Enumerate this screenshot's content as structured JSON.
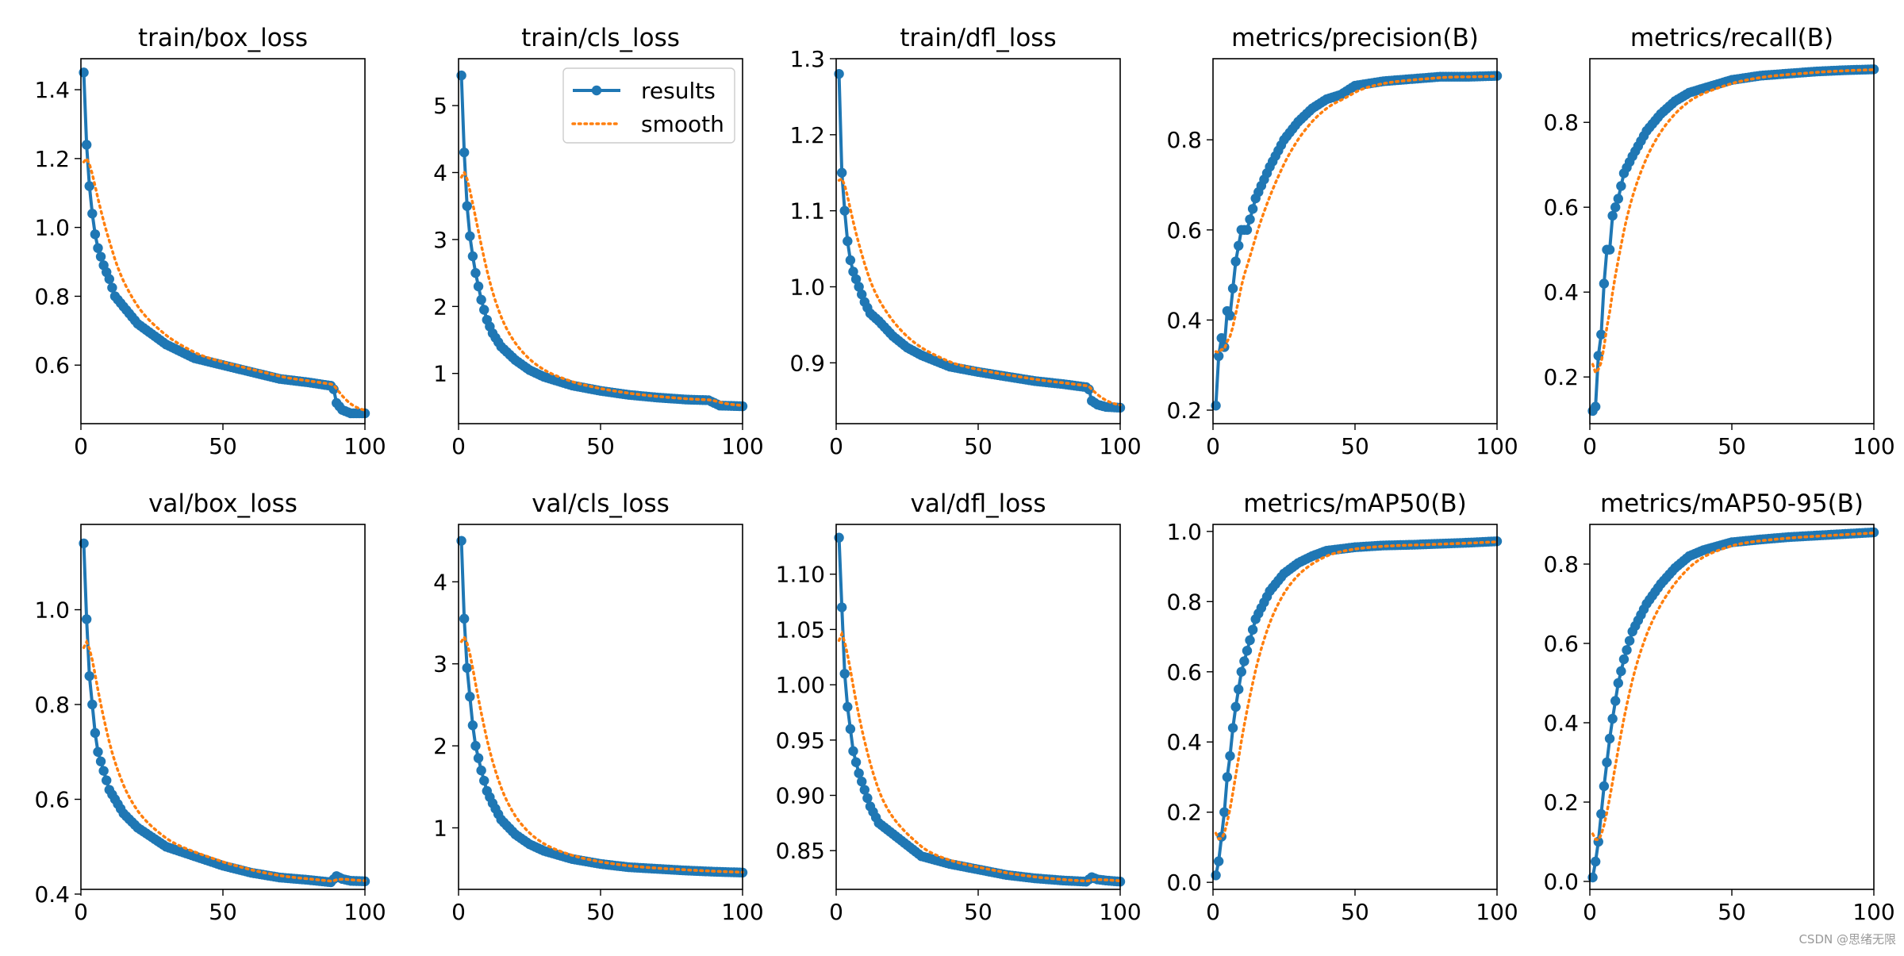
{
  "watermark": "CSDN @思绪无限",
  "legend": {
    "results_label": "results",
    "smooth_label": "smooth"
  },
  "colors": {
    "results": "#1f77b4",
    "smooth": "#ff7f0e",
    "axes": "#000000"
  },
  "chart_data": [
    {
      "type": "line",
      "title": "train/box_loss",
      "xlim": [
        0,
        100
      ],
      "ylim": [
        0.43,
        1.49
      ],
      "xticks": [
        0,
        50,
        100
      ],
      "yticks": [
        0.6,
        0.8,
        1.0,
        1.2,
        1.4
      ],
      "yprecision": 1,
      "legend": false,
      "anchors": [
        [
          1,
          1.45
        ],
        [
          2,
          1.24
        ],
        [
          3,
          1.12
        ],
        [
          4,
          1.04
        ],
        [
          5,
          0.98
        ],
        [
          6,
          0.94
        ],
        [
          8,
          0.89
        ],
        [
          10,
          0.85
        ],
        [
          12,
          0.8
        ],
        [
          15,
          0.77
        ],
        [
          20,
          0.72
        ],
        [
          25,
          0.69
        ],
        [
          30,
          0.66
        ],
        [
          40,
          0.62
        ],
        [
          50,
          0.6
        ],
        [
          60,
          0.58
        ],
        [
          70,
          0.56
        ],
        [
          80,
          0.55
        ],
        [
          88,
          0.54
        ],
        [
          89,
          0.53
        ],
        [
          90,
          0.49
        ],
        [
          92,
          0.47
        ],
        [
          95,
          0.46
        ],
        [
          100,
          0.46
        ]
      ],
      "smooth_start": 1.19
    },
    {
      "type": "line",
      "title": "train/cls_loss",
      "xlim": [
        0,
        100
      ],
      "ylim": [
        0.25,
        5.7
      ],
      "xticks": [
        0,
        50,
        100
      ],
      "yticks": [
        1,
        2,
        3,
        4,
        5
      ],
      "yprecision": 0,
      "legend": true,
      "anchors": [
        [
          1,
          5.45
        ],
        [
          2,
          4.3
        ],
        [
          3,
          3.5
        ],
        [
          4,
          3.05
        ],
        [
          5,
          2.75
        ],
        [
          6,
          2.5
        ],
        [
          8,
          2.1
        ],
        [
          10,
          1.8
        ],
        [
          12,
          1.6
        ],
        [
          15,
          1.4
        ],
        [
          20,
          1.2
        ],
        [
          25,
          1.05
        ],
        [
          30,
          0.95
        ],
        [
          40,
          0.82
        ],
        [
          50,
          0.74
        ],
        [
          60,
          0.68
        ],
        [
          70,
          0.64
        ],
        [
          80,
          0.61
        ],
        [
          88,
          0.6
        ],
        [
          90,
          0.56
        ],
        [
          92,
          0.52
        ],
        [
          100,
          0.51
        ]
      ],
      "smooth_start": 3.93
    },
    {
      "type": "line",
      "title": "train/dfl_loss",
      "xlim": [
        0,
        100
      ],
      "ylim": [
        0.82,
        1.3
      ],
      "xticks": [
        0,
        50,
        100
      ],
      "yticks": [
        0.9,
        1.0,
        1.1,
        1.2,
        1.3
      ],
      "yprecision": 1,
      "legend": false,
      "anchors": [
        [
          1,
          1.28
        ],
        [
          2,
          1.15
        ],
        [
          3,
          1.1
        ],
        [
          4,
          1.06
        ],
        [
          5,
          1.035
        ],
        [
          6,
          1.02
        ],
        [
          8,
          1.0
        ],
        [
          10,
          0.98
        ],
        [
          12,
          0.965
        ],
        [
          15,
          0.955
        ],
        [
          20,
          0.935
        ],
        [
          25,
          0.92
        ],
        [
          30,
          0.91
        ],
        [
          40,
          0.895
        ],
        [
          50,
          0.888
        ],
        [
          60,
          0.882
        ],
        [
          70,
          0.876
        ],
        [
          80,
          0.872
        ],
        [
          88,
          0.868
        ],
        [
          89,
          0.865
        ],
        [
          90,
          0.85
        ],
        [
          92,
          0.845
        ],
        [
          95,
          0.842
        ],
        [
          100,
          0.841
        ]
      ],
      "smooth_start": 1.14
    },
    {
      "type": "line",
      "title": "metrics/precision(B)",
      "xlim": [
        0,
        100
      ],
      "ylim": [
        0.17,
        0.98
      ],
      "xticks": [
        0,
        50,
        100
      ],
      "yticks": [
        0.2,
        0.4,
        0.6,
        0.8
      ],
      "yprecision": 1,
      "legend": false,
      "anchors": [
        [
          1,
          0.21
        ],
        [
          2,
          0.32
        ],
        [
          3,
          0.36
        ],
        [
          4,
          0.34
        ],
        [
          5,
          0.42
        ],
        [
          6,
          0.41
        ],
        [
          8,
          0.53
        ],
        [
          10,
          0.6
        ],
        [
          12,
          0.6
        ],
        [
          15,
          0.67
        ],
        [
          20,
          0.74
        ],
        [
          25,
          0.8
        ],
        [
          30,
          0.84
        ],
        [
          35,
          0.87
        ],
        [
          40,
          0.89
        ],
        [
          45,
          0.9
        ],
        [
          50,
          0.92
        ],
        [
          60,
          0.93
        ],
        [
          70,
          0.935
        ],
        [
          80,
          0.94
        ],
        [
          90,
          0.94
        ],
        [
          100,
          0.942
        ]
      ],
      "smooth_start": 0.33
    },
    {
      "type": "line",
      "title": "metrics/recall(B)",
      "xlim": [
        0,
        100
      ],
      "ylim": [
        0.09,
        0.95
      ],
      "xticks": [
        0,
        50,
        100
      ],
      "yticks": [
        0.2,
        0.4,
        0.6,
        0.8
      ],
      "yprecision": 1,
      "legend": false,
      "anchors": [
        [
          1,
          0.12
        ],
        [
          2,
          0.13
        ],
        [
          3,
          0.25
        ],
        [
          4,
          0.3
        ],
        [
          5,
          0.42
        ],
        [
          6,
          0.5
        ],
        [
          7,
          0.5
        ],
        [
          8,
          0.58
        ],
        [
          10,
          0.62
        ],
        [
          12,
          0.68
        ],
        [
          15,
          0.72
        ],
        [
          20,
          0.78
        ],
        [
          25,
          0.82
        ],
        [
          30,
          0.85
        ],
        [
          35,
          0.87
        ],
        [
          40,
          0.88
        ],
        [
          45,
          0.89
        ],
        [
          50,
          0.9
        ],
        [
          60,
          0.91
        ],
        [
          70,
          0.915
        ],
        [
          80,
          0.92
        ],
        [
          90,
          0.923
        ],
        [
          100,
          0.925
        ]
      ],
      "smooth_start": 0.23
    },
    {
      "type": "line",
      "title": "val/box_loss",
      "xlim": [
        0,
        100
      ],
      "ylim": [
        0.41,
        1.18
      ],
      "xticks": [
        0,
        50,
        100
      ],
      "yticks": [
        0.4,
        0.6,
        0.8,
        1.0
      ],
      "yprecision": 1,
      "legend": false,
      "anchors": [
        [
          1,
          1.14
        ],
        [
          2,
          0.98
        ],
        [
          3,
          0.86
        ],
        [
          4,
          0.8
        ],
        [
          5,
          0.74
        ],
        [
          6,
          0.7
        ],
        [
          8,
          0.66
        ],
        [
          10,
          0.62
        ],
        [
          12,
          0.6
        ],
        [
          15,
          0.57
        ],
        [
          20,
          0.54
        ],
        [
          25,
          0.52
        ],
        [
          30,
          0.5
        ],
        [
          40,
          0.48
        ],
        [
          50,
          0.46
        ],
        [
          60,
          0.445
        ],
        [
          70,
          0.435
        ],
        [
          80,
          0.43
        ],
        [
          88,
          0.425
        ],
        [
          90,
          0.438
        ],
        [
          92,
          0.432
        ],
        [
          95,
          0.428
        ],
        [
          100,
          0.427
        ]
      ],
      "smooth_start": 0.92
    },
    {
      "type": "line",
      "title": "val/cls_loss",
      "xlim": [
        0,
        100
      ],
      "ylim": [
        0.25,
        4.7
      ],
      "xticks": [
        0,
        50,
        100
      ],
      "yticks": [
        1,
        2,
        3,
        4
      ],
      "yprecision": 0,
      "legend": false,
      "anchors": [
        [
          1,
          4.5
        ],
        [
          2,
          3.55
        ],
        [
          3,
          2.95
        ],
        [
          4,
          2.6
        ],
        [
          5,
          2.25
        ],
        [
          6,
          2.0
        ],
        [
          8,
          1.7
        ],
        [
          10,
          1.45
        ],
        [
          12,
          1.3
        ],
        [
          15,
          1.1
        ],
        [
          20,
          0.92
        ],
        [
          25,
          0.8
        ],
        [
          30,
          0.72
        ],
        [
          40,
          0.62
        ],
        [
          50,
          0.56
        ],
        [
          60,
          0.52
        ],
        [
          70,
          0.5
        ],
        [
          80,
          0.48
        ],
        [
          90,
          0.465
        ],
        [
          100,
          0.455
        ]
      ],
      "smooth_start": 3.27
    },
    {
      "type": "line",
      "title": "val/dfl_loss",
      "xlim": [
        0,
        100
      ],
      "ylim": [
        0.815,
        1.145
      ],
      "xticks": [
        0,
        50,
        100
      ],
      "yticks": [
        0.85,
        0.9,
        0.95,
        1.0,
        1.05,
        1.1
      ],
      "yprecision": 2,
      "legend": false,
      "anchors": [
        [
          1,
          1.133
        ],
        [
          2,
          1.07
        ],
        [
          3,
          1.01
        ],
        [
          4,
          0.98
        ],
        [
          5,
          0.96
        ],
        [
          6,
          0.94
        ],
        [
          8,
          0.92
        ],
        [
          10,
          0.905
        ],
        [
          12,
          0.89
        ],
        [
          15,
          0.875
        ],
        [
          20,
          0.865
        ],
        [
          25,
          0.855
        ],
        [
          30,
          0.845
        ],
        [
          40,
          0.838
        ],
        [
          50,
          0.833
        ],
        [
          60,
          0.828
        ],
        [
          70,
          0.825
        ],
        [
          80,
          0.823
        ],
        [
          88,
          0.822
        ],
        [
          90,
          0.826
        ],
        [
          92,
          0.824
        ],
        [
          95,
          0.823
        ],
        [
          100,
          0.822
        ]
      ],
      "smooth_start": 1.04
    },
    {
      "type": "line",
      "title": "metrics/mAP50(B)",
      "xlim": [
        0,
        100
      ],
      "ylim": [
        -0.02,
        1.02
      ],
      "xticks": [
        0,
        50,
        100
      ],
      "yticks": [
        0.0,
        0.2,
        0.4,
        0.6,
        0.8,
        1.0
      ],
      "yprecision": 1,
      "legend": false,
      "anchors": [
        [
          1,
          0.02
        ],
        [
          2,
          0.06
        ],
        [
          3,
          0.13
        ],
        [
          4,
          0.2
        ],
        [
          5,
          0.3
        ],
        [
          6,
          0.36
        ],
        [
          7,
          0.44
        ],
        [
          8,
          0.5
        ],
        [
          10,
          0.6
        ],
        [
          12,
          0.66
        ],
        [
          15,
          0.75
        ],
        [
          20,
          0.83
        ],
        [
          25,
          0.88
        ],
        [
          30,
          0.91
        ],
        [
          35,
          0.93
        ],
        [
          40,
          0.945
        ],
        [
          50,
          0.955
        ],
        [
          60,
          0.96
        ],
        [
          70,
          0.962
        ],
        [
          80,
          0.965
        ],
        [
          90,
          0.968
        ],
        [
          100,
          0.972
        ]
      ],
      "smooth_start": 0.14
    },
    {
      "type": "line",
      "title": "metrics/mAP50-95(B)",
      "xlim": [
        0,
        100
      ],
      "ylim": [
        -0.02,
        0.9
      ],
      "xticks": [
        0,
        50,
        100
      ],
      "yticks": [
        0.0,
        0.2,
        0.4,
        0.6,
        0.8
      ],
      "yprecision": 1,
      "legend": false,
      "anchors": [
        [
          1,
          0.01
        ],
        [
          2,
          0.05
        ],
        [
          3,
          0.1
        ],
        [
          4,
          0.17
        ],
        [
          5,
          0.24
        ],
        [
          6,
          0.3
        ],
        [
          7,
          0.36
        ],
        [
          8,
          0.41
        ],
        [
          10,
          0.5
        ],
        [
          12,
          0.56
        ],
        [
          15,
          0.63
        ],
        [
          20,
          0.7
        ],
        [
          25,
          0.75
        ],
        [
          30,
          0.79
        ],
        [
          35,
          0.82
        ],
        [
          40,
          0.835
        ],
        [
          50,
          0.855
        ],
        [
          60,
          0.862
        ],
        [
          70,
          0.868
        ],
        [
          80,
          0.872
        ],
        [
          90,
          0.876
        ],
        [
          100,
          0.88
        ]
      ],
      "smooth_start": 0.12
    }
  ]
}
